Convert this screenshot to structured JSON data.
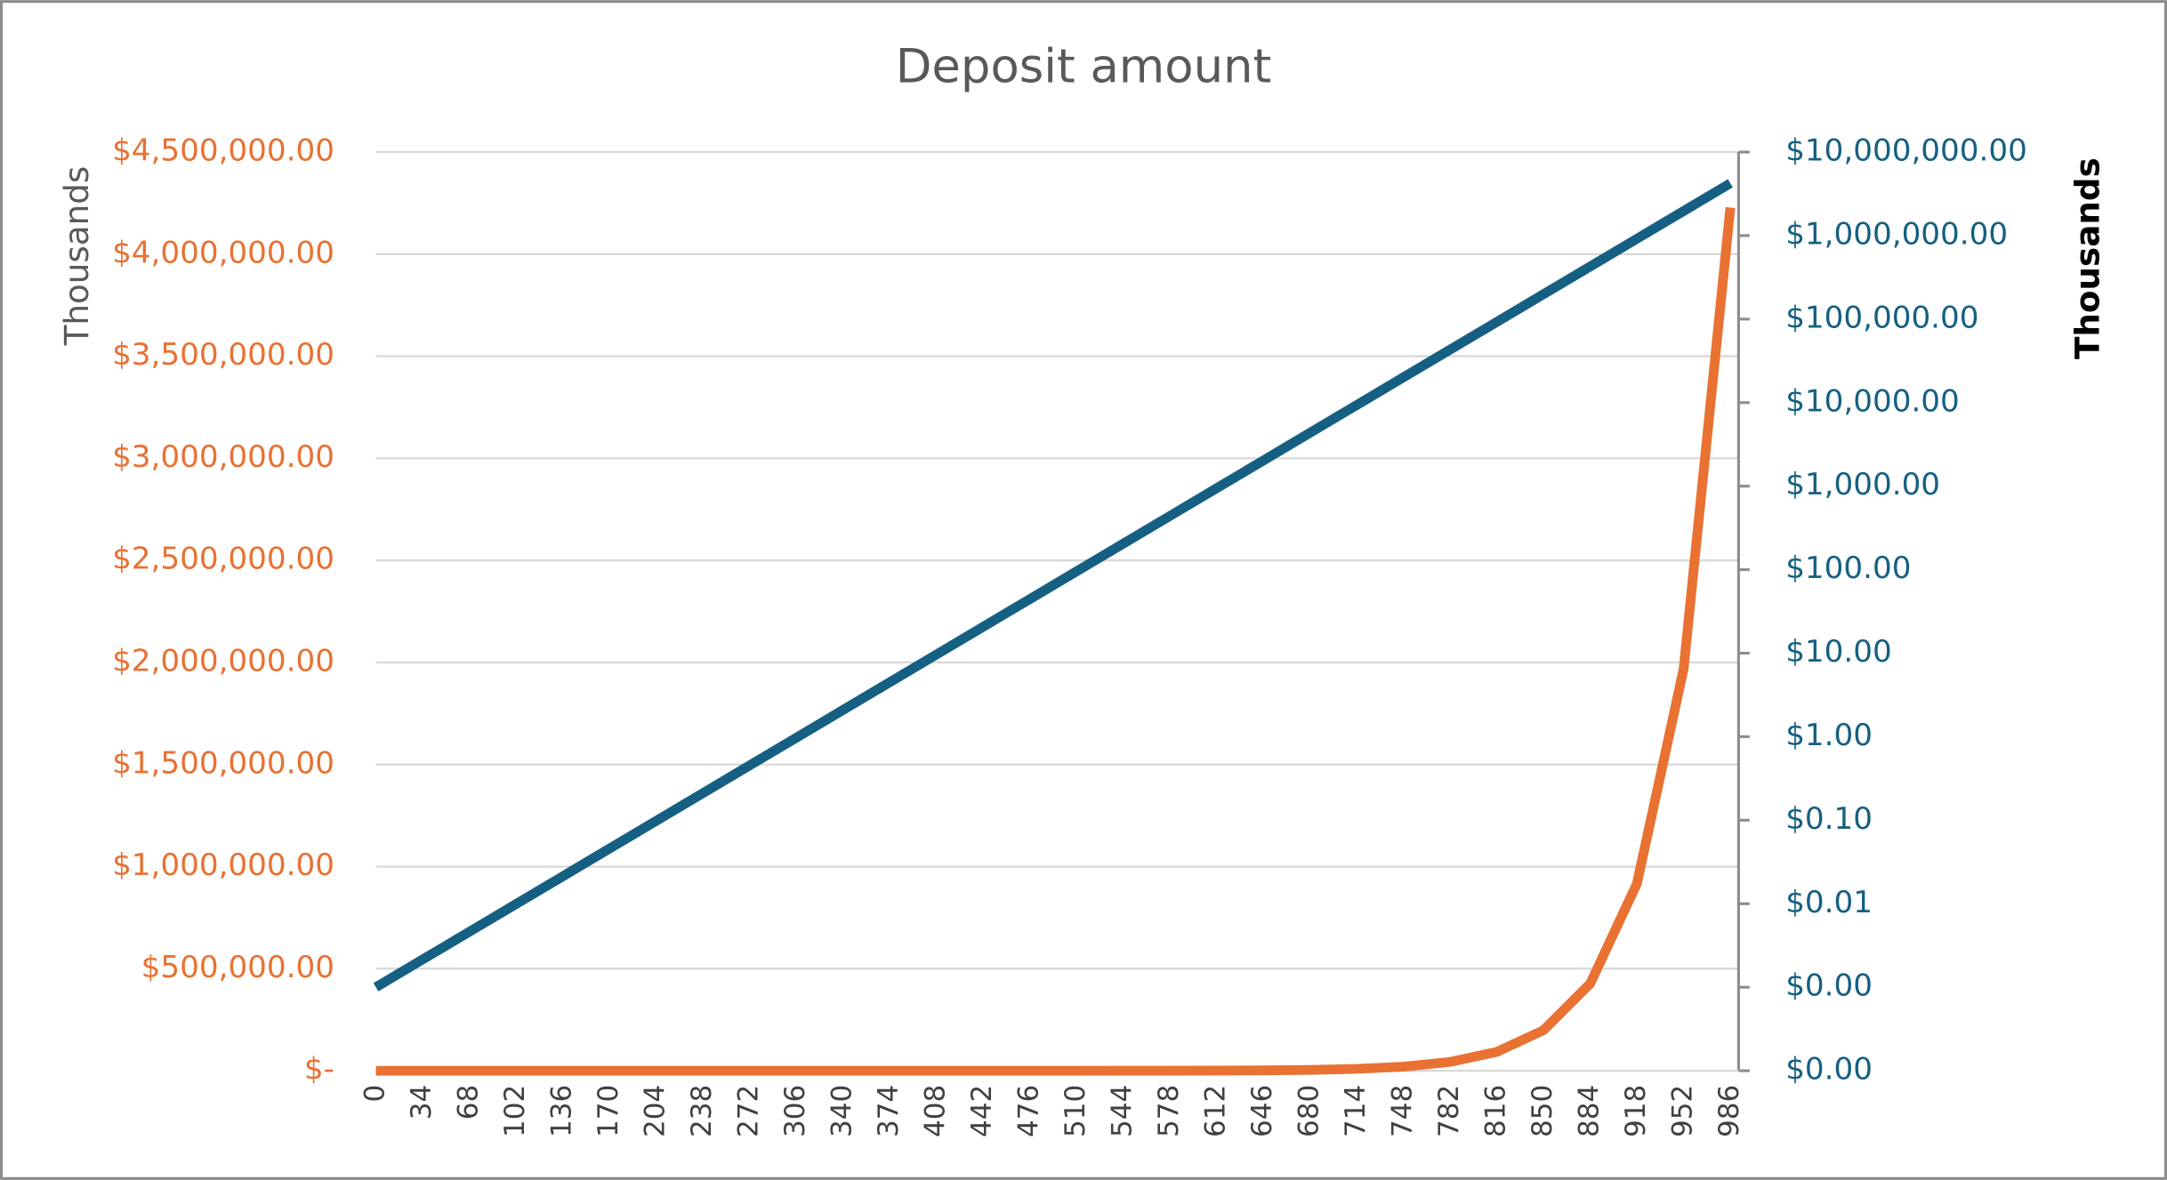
{
  "chart_data": {
    "type": "line",
    "title": "Deposit amount",
    "y_label": "Thousands",
    "y2_label": "Thousands",
    "x": [
      0,
      34,
      68,
      102,
      136,
      170,
      204,
      238,
      272,
      306,
      340,
      374,
      408,
      442,
      476,
      510,
      544,
      578,
      612,
      646,
      680,
      714,
      748,
      782,
      816,
      850,
      884,
      918,
      952,
      986
    ],
    "xlim": [
      0,
      992
    ],
    "xticks": [
      0,
      34,
      68,
      102,
      136,
      170,
      204,
      238,
      272,
      306,
      340,
      374,
      408,
      442,
      476,
      510,
      544,
      578,
      612,
      646,
      680,
      714,
      748,
      782,
      816,
      850,
      884,
      918,
      952,
      986
    ],
    "ylim": [
      0,
      4500000
    ],
    "yticks": [
      {
        "value": 0,
        "label": "$-"
      },
      {
        "value": 500000,
        "label": "$500,000.00"
      },
      {
        "value": 1000000,
        "label": "$1,000,000.00"
      },
      {
        "value": 1500000,
        "label": "$1,500,000.00"
      },
      {
        "value": 2000000,
        "label": "$2,000,000.00"
      },
      {
        "value": 2500000,
        "label": "$2,500,000.00"
      },
      {
        "value": 3000000,
        "label": "$3,000,000.00"
      },
      {
        "value": 3500000,
        "label": "$3,500,000.00"
      },
      {
        "value": 4000000,
        "label": "$4,000,000.00"
      },
      {
        "value": 4500000,
        "label": "$4,500,000.00"
      }
    ],
    "y2lim": [
      0.0001,
      10000000
    ],
    "y2log": true,
    "y2ticks": [
      {
        "value": 0.0001,
        "label": "$0.00"
      },
      {
        "value": 0.001,
        "label": "$0.00"
      },
      {
        "value": 0.01,
        "label": "$0.01"
      },
      {
        "value": 0.1,
        "label": "$0.10"
      },
      {
        "value": 1,
        "label": "$1.00"
      },
      {
        "value": 10,
        "label": "$10.00"
      },
      {
        "value": 100,
        "label": "$100.00"
      },
      {
        "value": 1000,
        "label": "$1,000.00"
      },
      {
        "value": 10000,
        "label": "$10,000.00"
      },
      {
        "value": 100000,
        "label": "$100,000.00"
      },
      {
        "value": 1000000,
        "label": "$1,000,000.00"
      },
      {
        "value": 10000000,
        "label": "$10,000,000.00"
      }
    ],
    "grid": true,
    "series": [
      {
        "color": "#e97132",
        "axis": "y",
        "values": [
          0.001,
          0.00215,
          0.00461,
          0.0099,
          0.02127,
          0.04567,
          0.09808,
          0.2106,
          0.4523,
          0.9713,
          2.086,
          4.48,
          9.62,
          20.66,
          44.37,
          95.28,
          204.6,
          439.4,
          943.6,
          2026,
          4352,
          9346,
          20070,
          43100,
          92560,
          198800,
          426900,
          916700,
          1969000,
          4228000
        ]
      },
      {
        "color": "#156082",
        "axis": "y2",
        "values": [
          0.001,
          0.00215,
          0.00461,
          0.0099,
          0.02127,
          0.04567,
          0.09808,
          0.2106,
          0.4523,
          0.9713,
          2.086,
          4.48,
          9.62,
          20.66,
          44.37,
          95.28,
          204.6,
          439.4,
          943.6,
          2026,
          4352,
          9346,
          20070,
          43100,
          92560,
          198800,
          426900,
          916700,
          1969000,
          4228000
        ]
      }
    ]
  }
}
